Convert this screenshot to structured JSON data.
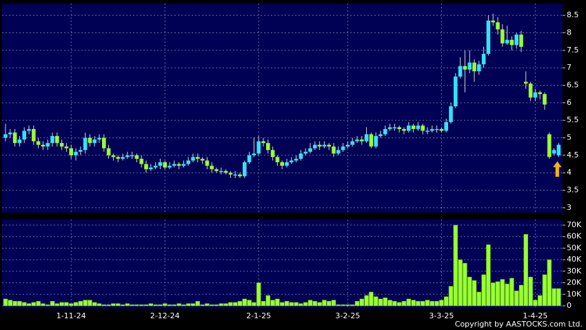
{
  "chart_data": [
    {
      "type": "candlestick",
      "up_color": "#33e3f5",
      "down_color": "#99ff33",
      "background": "#000055",
      "grid": true,
      "ylim": [
        2.86,
        8.84
      ],
      "yticks": [
        3,
        3.5,
        4,
        4.5,
        5,
        5.5,
        6,
        6.5,
        7,
        7.5,
        8,
        8.5
      ],
      "open": [
        5.0,
        5.1,
        5.15,
        4.85,
        4.95,
        5.2,
        5.25,
        4.9,
        4.8,
        4.75,
        4.85,
        5.05,
        4.85,
        4.75,
        4.7,
        4.5,
        4.6,
        4.65,
        5.0,
        4.85,
        4.95,
        5.0,
        4.7,
        4.5,
        4.45,
        4.4,
        4.45,
        4.5,
        4.5,
        4.4,
        4.25,
        4.1,
        4.15,
        4.2,
        4.3,
        4.15,
        4.2,
        4.25,
        4.2,
        4.25,
        4.35,
        4.45,
        4.4,
        4.35,
        4.2,
        4.1,
        4.05,
        4.05,
        4.0,
        3.95,
        3.95,
        3.9,
        4.3,
        4.5,
        4.55,
        4.9,
        4.85,
        4.65,
        4.45,
        4.3,
        4.2,
        4.3,
        4.35,
        4.4,
        4.55,
        4.6,
        4.7,
        4.8,
        4.75,
        4.8,
        4.75,
        4.55,
        4.65,
        4.75,
        4.8,
        4.9,
        4.95,
        4.9,
        5.1,
        4.75,
        5.05,
        5.1,
        5.25,
        5.3,
        5.3,
        5.25,
        5.2,
        5.35,
        5.25,
        5.35,
        5.2,
        5.2,
        5.25,
        5.25,
        5.2,
        5.45,
        5.9,
        6.75,
        7.05,
        6.95,
        7.15,
        6.9,
        7.1,
        7.4,
        8.35,
        8.3,
        8.1,
        7.7,
        7.8,
        7.65,
        7.95,
        6.6,
        6.55,
        6.15,
        6.3,
        6.25,
        5.1,
        4.55,
        4.5
      ],
      "high": [
        5.4,
        5.25,
        5.25,
        5.05,
        5.3,
        5.35,
        5.35,
        5.0,
        4.9,
        4.95,
        5.15,
        5.15,
        4.95,
        4.85,
        4.8,
        4.7,
        4.75,
        5.15,
        5.1,
        5.05,
        5.1,
        5.1,
        4.8,
        4.55,
        4.5,
        4.55,
        4.6,
        4.6,
        4.55,
        4.5,
        4.35,
        4.25,
        4.3,
        4.4,
        4.35,
        4.3,
        4.35,
        4.3,
        4.35,
        4.45,
        4.55,
        4.55,
        4.45,
        4.45,
        4.3,
        4.15,
        4.15,
        4.1,
        4.05,
        4.05,
        4.0,
        4.35,
        4.6,
        5.0,
        5.05,
        5.0,
        4.95,
        4.75,
        4.5,
        4.35,
        4.4,
        4.45,
        4.5,
        4.65,
        4.7,
        4.85,
        4.9,
        4.9,
        4.9,
        4.85,
        4.85,
        4.75,
        4.85,
        4.9,
        5.0,
        5.05,
        5.05,
        5.3,
        5.15,
        5.15,
        5.2,
        5.35,
        5.4,
        5.4,
        5.35,
        5.3,
        5.45,
        5.4,
        5.45,
        5.4,
        5.3,
        5.35,
        5.35,
        5.3,
        5.55,
        6.0,
        6.85,
        7.3,
        7.5,
        7.5,
        7.25,
        7.2,
        7.6,
        8.5,
        8.55,
        8.45,
        8.25,
        8.2,
        7.9,
        8.0,
        8.05,
        6.9,
        6.6,
        6.4,
        6.35,
        6.3,
        5.15,
        4.7,
        4.85
      ],
      "low": [
        4.9,
        5.0,
        4.75,
        4.75,
        4.85,
        5.1,
        4.8,
        4.7,
        4.65,
        4.65,
        4.75,
        4.75,
        4.65,
        4.6,
        4.4,
        4.35,
        4.5,
        4.55,
        4.75,
        4.75,
        4.85,
        4.6,
        4.4,
        4.35,
        4.3,
        4.35,
        4.4,
        4.4,
        4.3,
        4.15,
        4.0,
        4.05,
        4.1,
        4.1,
        4.1,
        4.1,
        4.15,
        4.1,
        4.15,
        4.2,
        4.3,
        4.3,
        4.25,
        4.1,
        4.0,
        4.0,
        3.95,
        3.95,
        3.85,
        3.85,
        3.85,
        3.85,
        4.25,
        4.45,
        4.5,
        4.75,
        4.55,
        4.35,
        4.2,
        4.1,
        4.15,
        4.25,
        4.3,
        4.35,
        4.5,
        4.55,
        4.65,
        4.65,
        4.7,
        4.65,
        4.45,
        4.5,
        4.6,
        4.7,
        4.75,
        4.85,
        4.8,
        4.85,
        4.7,
        4.7,
        5.0,
        5.05,
        5.2,
        5.2,
        5.15,
        5.1,
        5.15,
        5.15,
        5.2,
        5.1,
        5.1,
        5.15,
        5.15,
        5.15,
        5.15,
        5.4,
        5.85,
        6.7,
        6.3,
        6.85,
        6.6,
        6.8,
        7.0,
        7.35,
        8.2,
        7.95,
        7.6,
        7.65,
        7.5,
        7.55,
        7.45,
        6.4,
        6.05,
        6.05,
        6.1,
        5.8,
        4.4,
        4.5,
        4.45
      ],
      "close": [
        5.1,
        5.15,
        4.85,
        4.95,
        5.2,
        5.25,
        4.9,
        4.8,
        4.75,
        4.85,
        5.05,
        4.85,
        4.75,
        4.7,
        4.5,
        4.6,
        4.65,
        5.0,
        4.85,
        4.95,
        5.0,
        4.7,
        4.5,
        4.45,
        4.4,
        4.45,
        4.5,
        4.5,
        4.4,
        4.25,
        4.1,
        4.15,
        4.2,
        4.3,
        4.15,
        4.2,
        4.25,
        4.2,
        4.25,
        4.35,
        4.45,
        4.4,
        4.35,
        4.2,
        4.1,
        4.05,
        4.05,
        4.0,
        3.95,
        3.95,
        3.9,
        4.3,
        4.5,
        4.55,
        4.9,
        4.85,
        4.65,
        4.45,
        4.3,
        4.2,
        4.3,
        4.35,
        4.4,
        4.55,
        4.6,
        4.7,
        4.8,
        4.75,
        4.8,
        4.75,
        4.55,
        4.65,
        4.75,
        4.8,
        4.9,
        4.95,
        4.9,
        5.1,
        4.75,
        5.05,
        5.1,
        5.25,
        5.3,
        5.3,
        5.25,
        5.2,
        5.35,
        5.25,
        5.35,
        5.2,
        5.2,
        5.25,
        5.25,
        5.2,
        5.45,
        5.9,
        6.75,
        7.05,
        6.95,
        7.15,
        6.9,
        7.1,
        7.4,
        8.35,
        8.3,
        8.1,
        7.7,
        7.8,
        7.65,
        7.95,
        7.6,
        6.55,
        6.15,
        6.3,
        6.25,
        5.95,
        4.45,
        4.65,
        4.8
      ]
    },
    {
      "type": "bar",
      "color": "#99ff33",
      "background": "#000055",
      "grid": true,
      "ylim": [
        -2400,
        74800
      ],
      "yticks": [
        0,
        {
          "value": 10000,
          "label": "10K"
        },
        {
          "value": 20000,
          "label": "20K"
        },
        {
          "value": 30000,
          "label": "30K"
        },
        {
          "value": 40000,
          "label": "40K"
        },
        {
          "value": 50000,
          "label": "50K"
        },
        {
          "value": 60000,
          "label": "60K"
        },
        {
          "value": 70000,
          "label": "70K"
        }
      ],
      "categories": [
        null,
        null,
        null,
        null,
        null,
        null,
        null,
        null,
        null,
        null,
        null,
        null,
        null,
        null,
        "1-11-24",
        null,
        null,
        null,
        null,
        null,
        null,
        null,
        null,
        null,
        null,
        null,
        null,
        null,
        null,
        null,
        null,
        null,
        null,
        null,
        "2-12-24",
        null,
        null,
        null,
        null,
        null,
        null,
        null,
        null,
        null,
        null,
        null,
        null,
        null,
        null,
        null,
        null,
        null,
        null,
        null,
        "2-1-25",
        null,
        null,
        null,
        null,
        null,
        null,
        null,
        null,
        null,
        null,
        null,
        null,
        null,
        null,
        null,
        null,
        null,
        null,
        "3-2-25",
        null,
        null,
        null,
        null,
        null,
        null,
        null,
        null,
        null,
        null,
        null,
        null,
        null,
        null,
        null,
        null,
        null,
        null,
        null,
        "3-3-25",
        null,
        null,
        null,
        null,
        null,
        null,
        null,
        null,
        null,
        null,
        null,
        null,
        null,
        null,
        null,
        null,
        null,
        null,
        null,
        "1-4-25",
        null,
        null,
        null,
        null,
        null
      ],
      "values": [
        6000,
        5000,
        4000,
        4000,
        3000,
        2000,
        3000,
        4000,
        2000,
        1000,
        4000,
        2000,
        3000,
        3000,
        2000,
        3000,
        4000,
        5000,
        5000,
        3000,
        2000,
        1000,
        1000,
        2000,
        2000,
        1000,
        2000,
        1000,
        1000,
        1000,
        1000,
        2000,
        1000,
        1000,
        2000,
        1000,
        1000,
        2000,
        1000,
        2000,
        2000,
        4000,
        1000,
        2000,
        1000,
        1000,
        2000,
        2000,
        3000,
        3000,
        4000,
        6000,
        5000,
        3000,
        20000,
        4000,
        9000,
        5000,
        6000,
        3000,
        4000,
        3000,
        3000,
        2000,
        3000,
        5000,
        4000,
        3000,
        5000,
        4000,
        5000,
        1000,
        1000,
        1000,
        1000,
        4000,
        6000,
        9000,
        12000,
        8000,
        6000,
        7000,
        5000,
        4000,
        3000,
        4000,
        6000,
        5000,
        4000,
        4000,
        5000,
        4000,
        4000,
        5000,
        8000,
        17000,
        70000,
        40000,
        37000,
        25000,
        22000,
        12000,
        27000,
        53000,
        20000,
        21000,
        23000,
        19000,
        24000,
        13000,
        18000,
        62000,
        25000,
        5000,
        9000,
        27000,
        40000,
        15000,
        15000
      ],
      "source": "Copyright by AASTOCKS.com Ltd."
    }
  ]
}
